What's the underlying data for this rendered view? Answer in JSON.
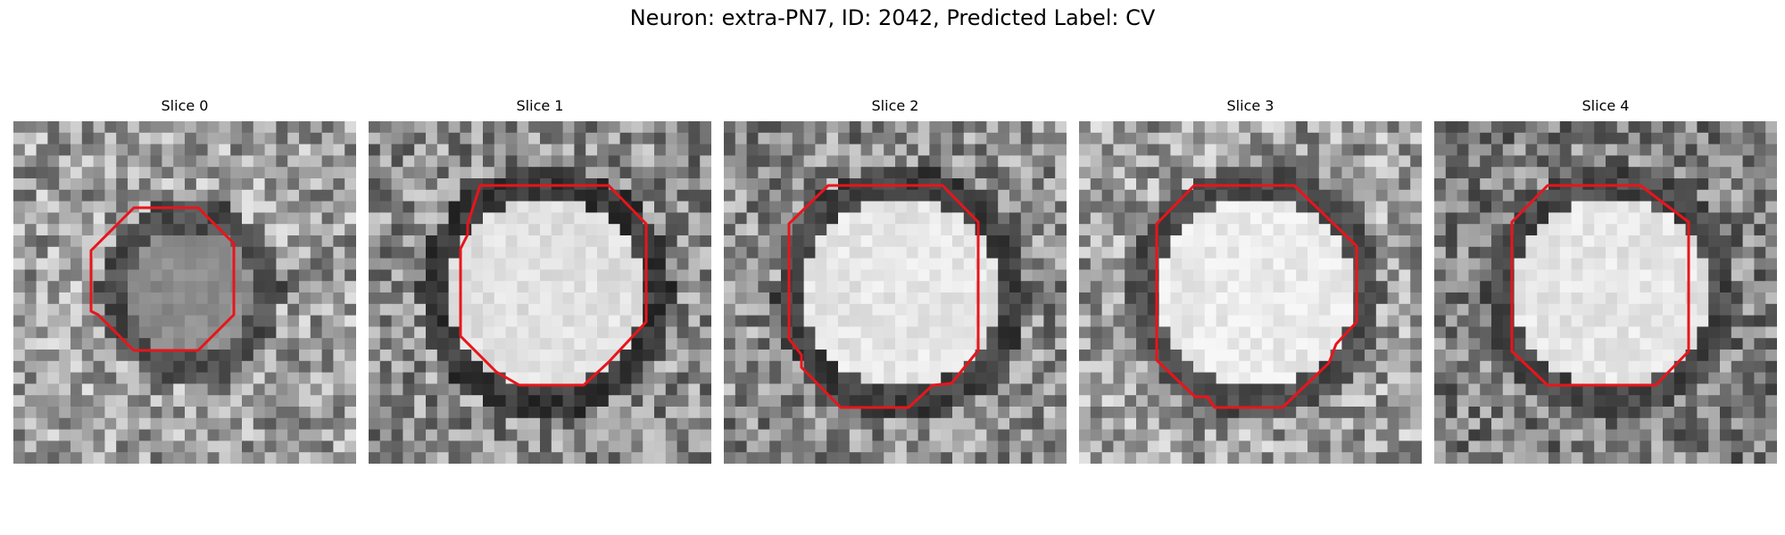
{
  "figure": {
    "title": "Neuron: extra-PN7, ID: 2042, Predicted Label: CV"
  },
  "colors": {
    "contour": "#e8151b"
  },
  "panels": [
    {
      "title": "Slice 0",
      "seed": 11,
      "blob": {
        "inner": 0.55,
        "ring": 0.3,
        "shade": 0.62
      }
    },
    {
      "title": "Slice 1",
      "seed": 23,
      "blob": {
        "inner": 0.88,
        "ring": 0.22,
        "shade": 0.55
      }
    },
    {
      "title": "Slice 2",
      "seed": 37,
      "blob": {
        "inner": 0.9,
        "ring": 0.25,
        "shade": 0.55
      }
    },
    {
      "title": "Slice 3",
      "seed": 41,
      "blob": {
        "inner": 0.92,
        "ring": 0.3,
        "shade": 0.62
      }
    },
    {
      "title": "Slice 4",
      "seed": 53,
      "blob": {
        "inner": 0.9,
        "ring": 0.28,
        "shade": 0.5
      }
    }
  ]
}
